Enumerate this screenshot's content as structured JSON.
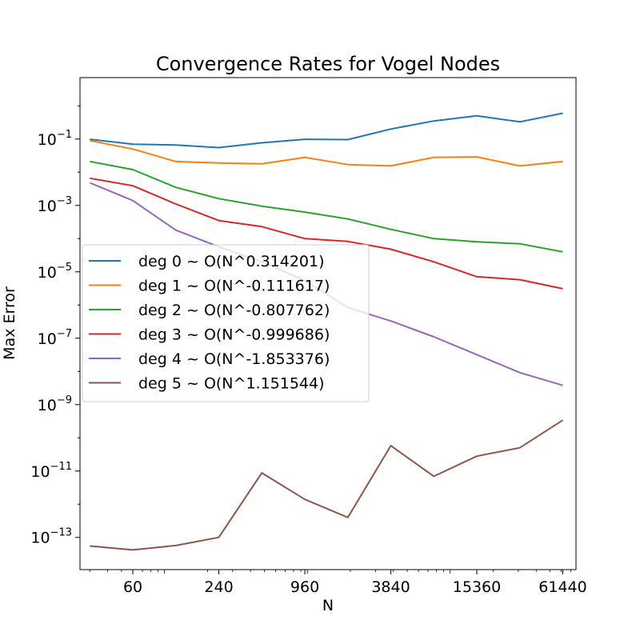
{
  "chart_data": {
    "type": "line",
    "title": "Convergence Rates for Vogel Nodes",
    "xlabel": "N",
    "ylabel": "Max Error",
    "xscale": "log2",
    "yscale": "log10",
    "xlim": [
      25.6,
      76000
    ],
    "ylim_exp": [
      -13.97,
      0.85
    ],
    "x_ticks": [
      {
        "value": 60,
        "label": "60"
      },
      {
        "value": 240,
        "label": "240"
      },
      {
        "value": 960,
        "label": "960"
      },
      {
        "value": 3840,
        "label": "3840"
      },
      {
        "value": 15360,
        "label": "15360"
      },
      {
        "value": 61440,
        "label": "61440"
      }
    ],
    "y_ticks": [
      {
        "exp": -13,
        "base": "10",
        "power": "−13"
      },
      {
        "exp": -11,
        "base": "10",
        "power": "−11"
      },
      {
        "exp": -9,
        "base": "10",
        "power": "−9"
      },
      {
        "exp": -7,
        "base": "10",
        "power": "−7"
      },
      {
        "exp": -5,
        "base": "10",
        "power": "−5"
      },
      {
        "exp": -3,
        "base": "10",
        "power": "−3"
      },
      {
        "exp": -1,
        "base": "10",
        "power": "−1"
      }
    ],
    "legend_position": "center-left",
    "x": [
      30,
      60,
      120,
      240,
      480,
      960,
      1920,
      3840,
      7680,
      15360,
      30720,
      61440
    ],
    "series": [
      {
        "name": "deg 0 ~ O(N^0.314201)",
        "color": "#1f77b4",
        "values": [
          0.098,
          0.07,
          0.066,
          0.055,
          0.077,
          0.098,
          0.096,
          0.2,
          0.35,
          0.5,
          0.33,
          0.6
        ]
      },
      {
        "name": "deg 1 ~ O(N^-0.111617)",
        "color": "#ff7f0e",
        "values": [
          0.09,
          0.05,
          0.021,
          0.019,
          0.018,
          0.028,
          0.017,
          0.0155,
          0.028,
          0.029,
          0.0155,
          0.021
        ]
      },
      {
        "name": "deg 2 ~ O(N^-0.807762)",
        "color": "#2ca02c",
        "values": [
          0.021,
          0.012,
          0.0035,
          0.0016,
          0.00095,
          0.00063,
          0.00039,
          0.00019,
          0.0001,
          8e-05,
          7e-05,
          4e-05
        ]
      },
      {
        "name": "deg 3 ~ O(N^-0.999686)",
        "color": "#d62728",
        "values": [
          0.0066,
          0.0039,
          0.0011,
          0.00035,
          0.00023,
          0.0001,
          8.2e-05,
          4.8e-05,
          2e-05,
          7.1e-06,
          5.8e-06,
          3.1e-06
        ]
      },
      {
        "name": "deg 4 ~ O(N^-1.853376)",
        "color": "#9467bd",
        "values": [
          0.0048,
          0.0014,
          0.00018,
          5.7e-05,
          2e-05,
          5.5e-06,
          8.3e-07,
          3.3e-07,
          1.1e-07,
          3.2e-08,
          9.2e-09,
          3.8e-09
        ]
      },
      {
        "name": "deg 5 ~ O(N^1.151544)",
        "color": "#8c564b",
        "values": [
          5.5e-14,
          4.2e-14,
          5.7e-14,
          1e-13,
          8.8e-12,
          1.4e-12,
          4e-13,
          5.8e-11,
          6.9e-12,
          2.8e-11,
          5e-11,
          3.4e-10
        ]
      }
    ]
  }
}
